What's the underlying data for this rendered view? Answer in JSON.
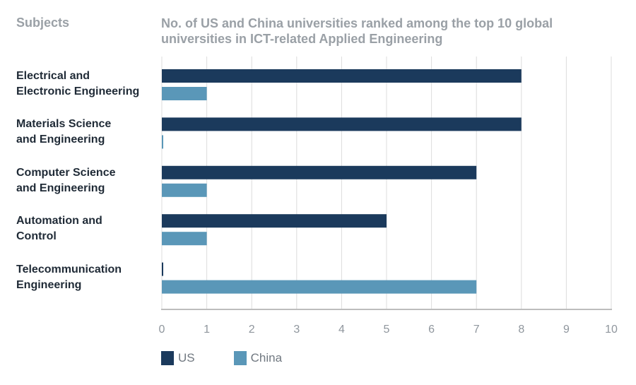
{
  "header": {
    "subjects_label": "Subjects",
    "title_line1": "No. of US and China universities ranked among the top 10 global",
    "title_line2": "universities in ICT-related Applied Engineering"
  },
  "colors": {
    "us": "#1b3a5c",
    "china": "#5a97b8",
    "grid": "#dcdcdc",
    "axis": "#bdbdbd"
  },
  "chart_data": {
    "type": "bar",
    "orientation": "horizontal",
    "title": "No. of US and China universities ranked among the top 10 global universities in ICT-related Applied Engineering",
    "categories": [
      [
        "Electrical and",
        "Electronic Engineering"
      ],
      [
        "Materials Science",
        "and Engineering"
      ],
      [
        "Computer Science",
        "and Engineering"
      ],
      [
        "Automation and",
        "Control"
      ],
      [
        "Telecommunication",
        "Engineering"
      ]
    ],
    "series": [
      {
        "name": "US",
        "values": [
          8,
          8,
          7,
          5,
          0
        ]
      },
      {
        "name": "China",
        "values": [
          1,
          0,
          1,
          1,
          7
        ]
      }
    ],
    "xlim": [
      0,
      10
    ],
    "xticks": [
      "0",
      "1",
      "2",
      "3",
      "4",
      "5",
      "6",
      "7",
      "8",
      "9",
      "10"
    ],
    "grid": true,
    "legend_position": "bottom-left"
  }
}
